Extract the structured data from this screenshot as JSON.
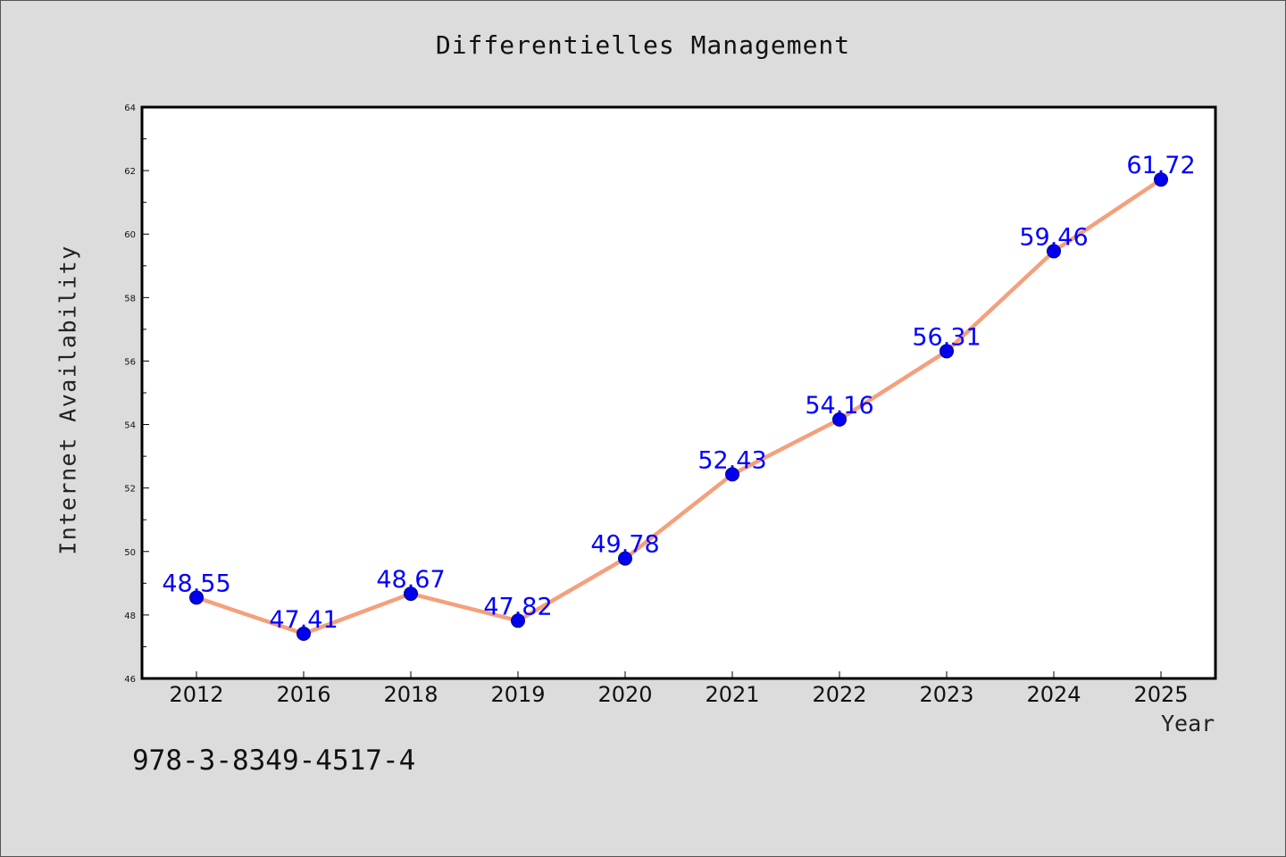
{
  "chart_data": {
    "type": "line",
    "title": "Differentielles Management",
    "xlabel": "Year",
    "ylabel": "Internet Availability",
    "categories": [
      "2012",
      "2016",
      "2018",
      "2019",
      "2020",
      "2021",
      "2022",
      "2023",
      "2024",
      "2025"
    ],
    "values": [
      48.55,
      47.41,
      48.67,
      47.82,
      49.78,
      52.43,
      54.16,
      56.31,
      59.46,
      61.72
    ],
    "value_labels": [
      "48.55",
      "47.41",
      "48.67",
      "47.82",
      "49.78",
      "52.43",
      "54.16",
      "56.31",
      "59.46",
      "61.72"
    ],
    "ylim": [
      46,
      64
    ],
    "yticks": [
      "46",
      "48",
      "50",
      "52",
      "54",
      "56",
      "58",
      "60",
      "62",
      "64"
    ],
    "grid": false,
    "line_color": "#f4a07c",
    "marker_color": "#0000ee",
    "label_color": "#0000ff"
  },
  "footnote": "978-3-8349-4517-4"
}
